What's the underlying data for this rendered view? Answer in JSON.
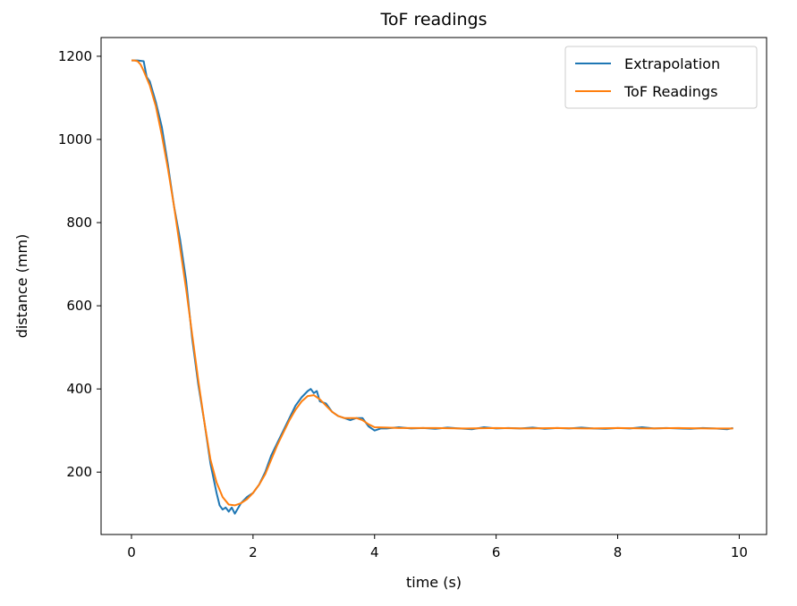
{
  "chart_data": {
    "type": "line",
    "title": "ToF readings",
    "xlabel": "time (s)",
    "ylabel": "distance (mm)",
    "xlim": [
      -0.5,
      10.45
    ],
    "ylim": [
      50,
      1245
    ],
    "xticks": [
      0,
      2,
      4,
      6,
      8,
      10
    ],
    "yticks": [
      200,
      400,
      600,
      800,
      1000,
      1200
    ],
    "grid": false,
    "legend_position": "top-right",
    "series": [
      {
        "name": "Extrapolation",
        "color": "#1f77b4",
        "x": [
          0.0,
          0.1,
          0.2,
          0.25,
          0.3,
          0.4,
          0.5,
          0.6,
          0.7,
          0.8,
          0.9,
          1.0,
          1.1,
          1.2,
          1.3,
          1.35,
          1.4,
          1.45,
          1.5,
          1.55,
          1.6,
          1.65,
          1.7,
          1.8,
          1.9,
          2.0,
          2.1,
          2.2,
          2.3,
          2.4,
          2.5,
          2.6,
          2.7,
          2.8,
          2.9,
          2.95,
          3.0,
          3.05,
          3.1,
          3.2,
          3.3,
          3.4,
          3.5,
          3.6,
          3.7,
          3.8,
          3.9,
          4.0,
          4.1,
          4.2,
          4.4,
          4.6,
          4.8,
          5.0,
          5.2,
          5.4,
          5.6,
          5.8,
          6.0,
          6.2,
          6.4,
          6.6,
          6.8,
          7.0,
          7.2,
          7.4,
          7.6,
          7.8,
          8.0,
          8.2,
          8.4,
          8.6,
          8.8,
          9.0,
          9.2,
          9.4,
          9.6,
          9.8,
          9.9
        ],
        "values": [
          1190,
          1190,
          1188,
          1150,
          1140,
          1090,
          1030,
          940,
          840,
          760,
          660,
          520,
          410,
          320,
          220,
          185,
          150,
          120,
          110,
          115,
          105,
          115,
          100,
          125,
          140,
          150,
          170,
          200,
          240,
          270,
          300,
          330,
          360,
          380,
          395,
          400,
          390,
          395,
          370,
          365,
          345,
          335,
          330,
          325,
          330,
          330,
          310,
          300,
          305,
          305,
          308,
          305,
          306,
          304,
          307,
          305,
          303,
          308,
          305,
          306,
          305,
          307,
          304,
          306,
          305,
          307,
          305,
          304,
          306,
          305,
          308,
          305,
          306,
          305,
          304,
          306,
          305,
          303,
          306
        ]
      },
      {
        "name": "ToF Readings",
        "color": "#ff7f0e",
        "x": [
          0.0,
          0.05,
          0.1,
          0.15,
          0.2,
          0.3,
          0.4,
          0.5,
          0.6,
          0.7,
          0.8,
          0.9,
          1.0,
          1.1,
          1.2,
          1.3,
          1.4,
          1.5,
          1.6,
          1.7,
          1.8,
          1.9,
          2.0,
          2.1,
          2.2,
          2.3,
          2.4,
          2.5,
          2.6,
          2.7,
          2.8,
          2.9,
          3.0,
          3.1,
          3.2,
          3.3,
          3.4,
          3.5,
          3.6,
          3.7,
          3.8,
          3.9,
          4.0,
          4.2,
          4.4,
          4.6,
          4.8,
          5.0,
          5.5,
          6.0,
          6.5,
          7.0,
          7.5,
          8.0,
          8.5,
          9.0,
          9.5,
          9.9
        ],
        "values": [
          1190,
          1190,
          1188,
          1180,
          1165,
          1130,
          1080,
          1010,
          930,
          840,
          740,
          640,
          530,
          420,
          320,
          230,
          175,
          140,
          122,
          120,
          125,
          135,
          150,
          170,
          195,
          230,
          265,
          295,
          325,
          350,
          370,
          383,
          385,
          375,
          360,
          345,
          335,
          330,
          330,
          330,
          325,
          315,
          308,
          307,
          306,
          306,
          306,
          306,
          305,
          306,
          305,
          306,
          305,
          306,
          305,
          306,
          305,
          305
        ]
      }
    ]
  }
}
